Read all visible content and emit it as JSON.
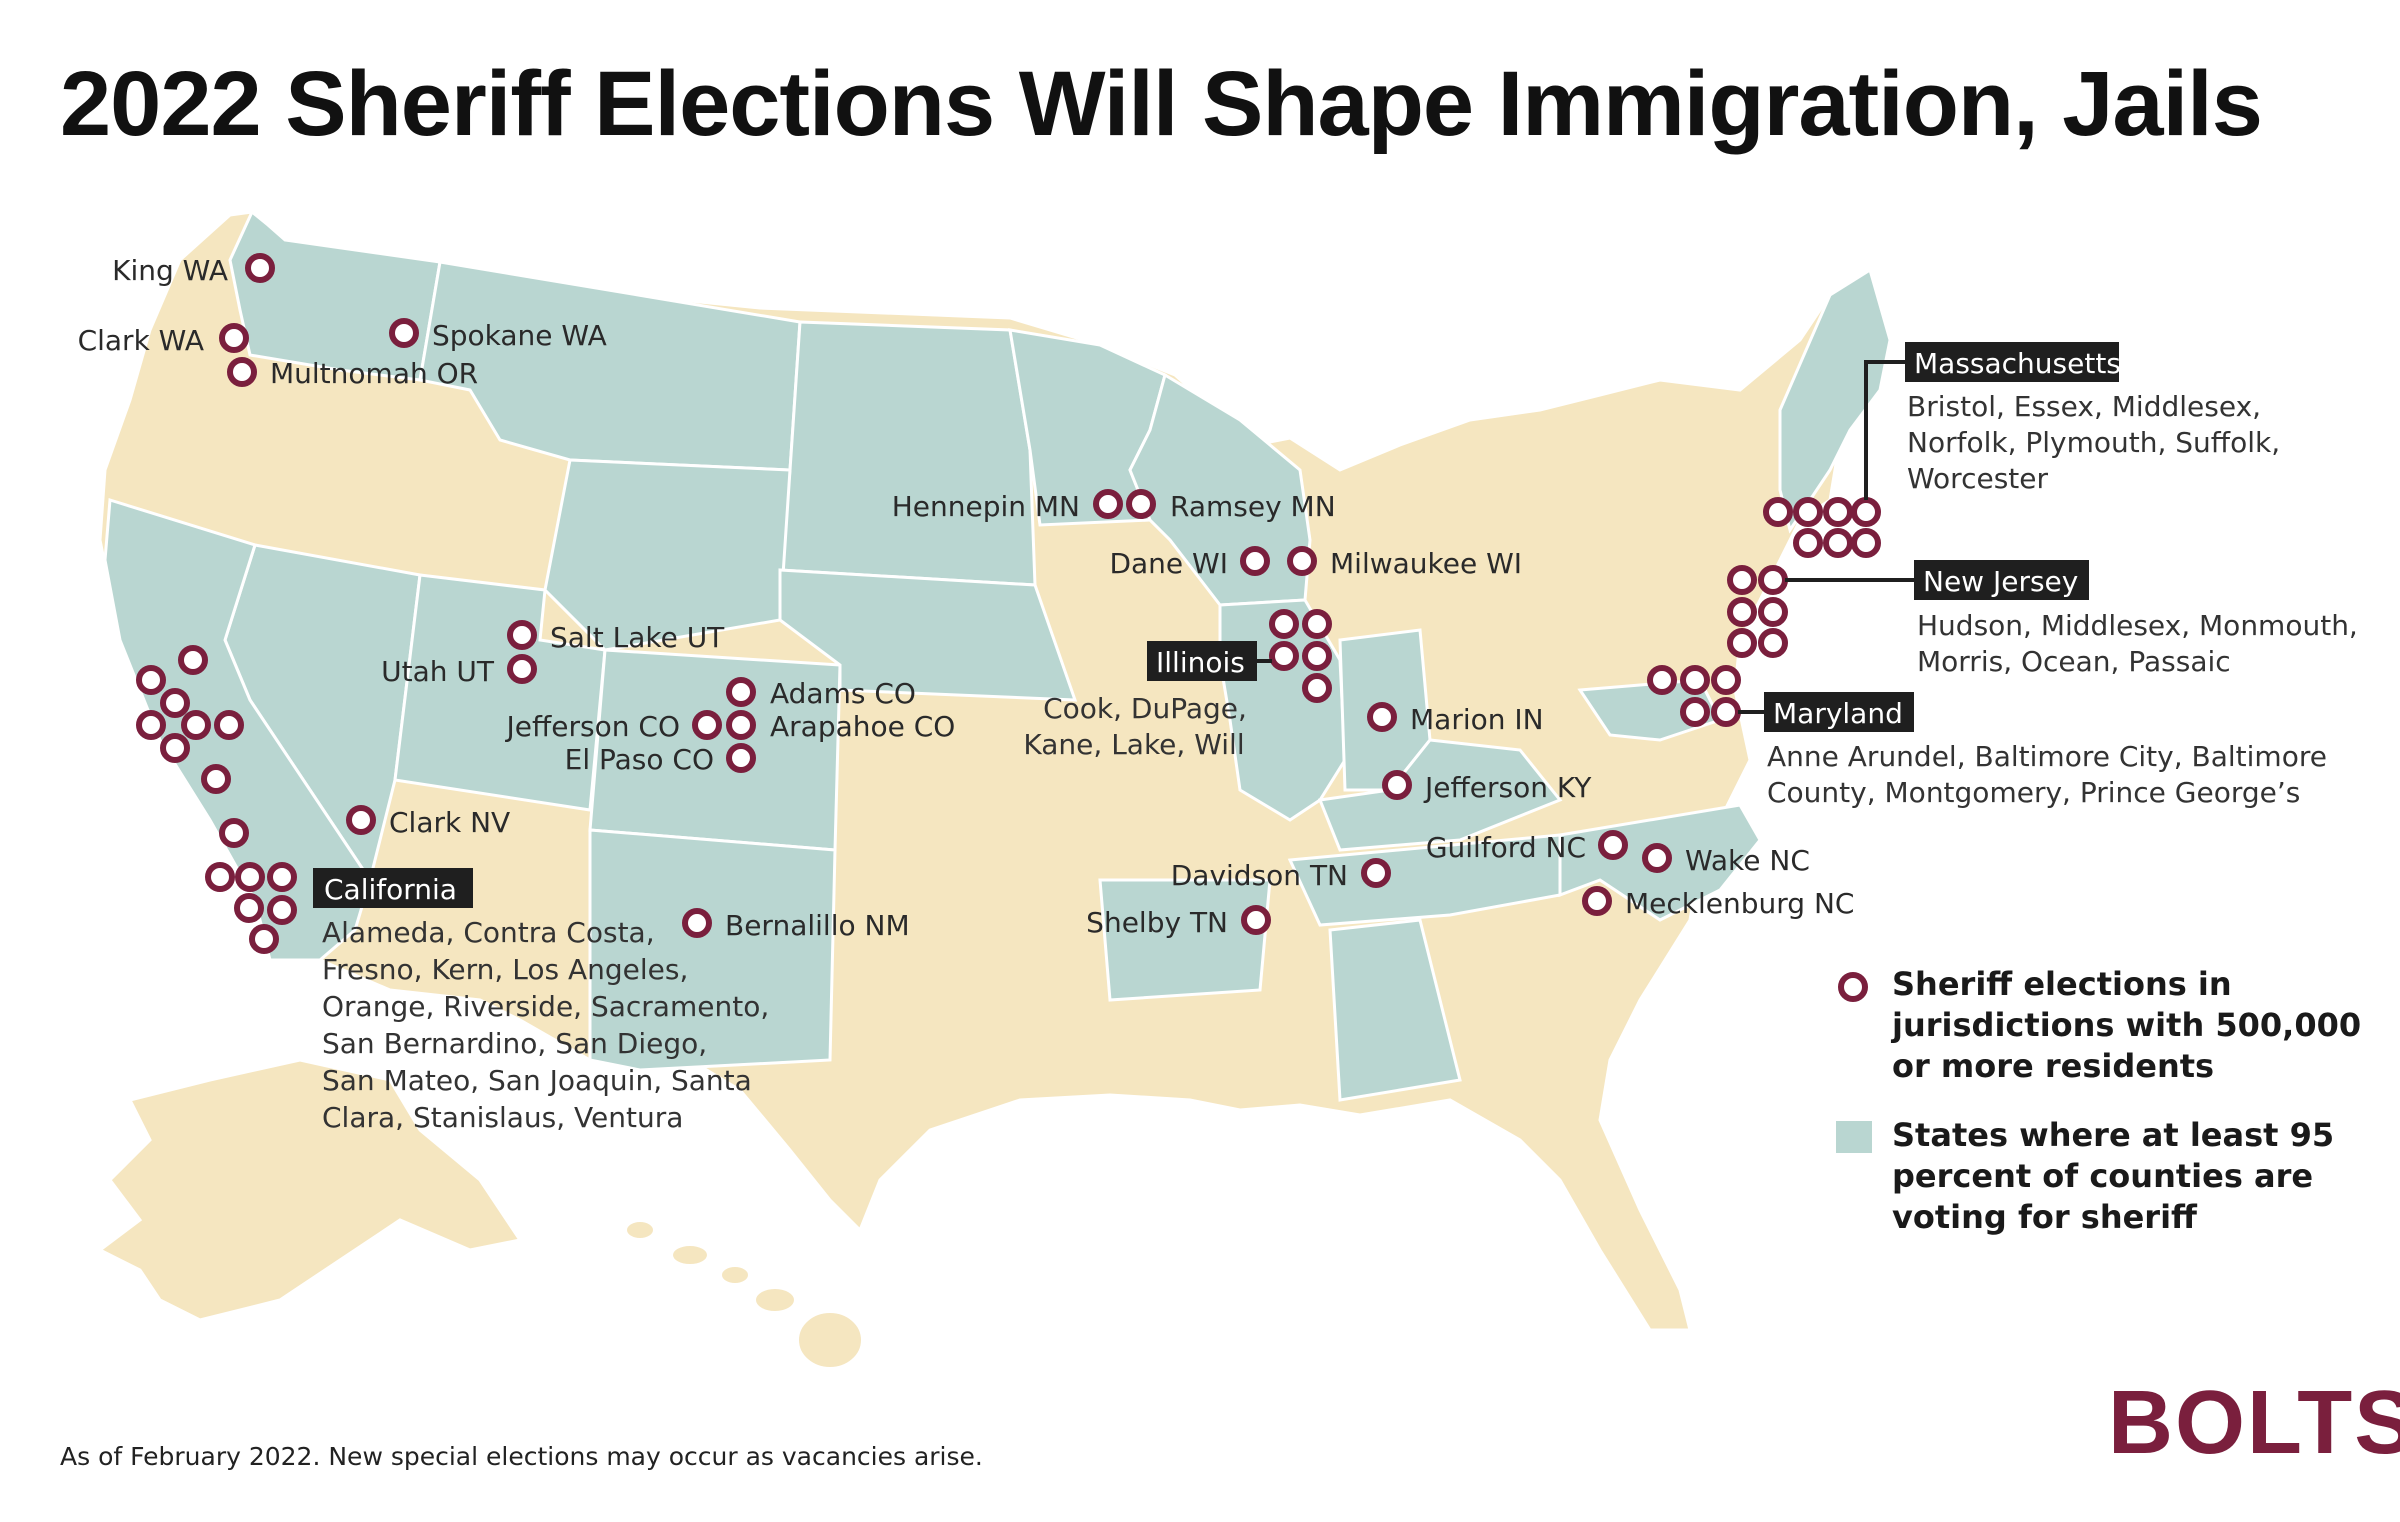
{
  "title": "2022 Sheriff Elections Will Shape Immigration, Jails",
  "footnote": "As of February 2022. New special elections may occur as vacancies arise.",
  "logo": "BOLTS",
  "colors": {
    "marker": "#7a1f3d",
    "high_turnout_state": "#b9d6d1",
    "other_state": "#f5e6c0",
    "state_border": "#ffffff",
    "tag_bg": "#1f1f1f"
  },
  "legend": {
    "marker_text": [
      "Sheriff elections in",
      "jurisdictions with 500,000",
      "or more residents"
    ],
    "state_text": [
      "States where at least 95",
      "percent of counties are",
      "voting for sheriff"
    ]
  },
  "labels": {
    "king": "King WA",
    "clark_wa": "Clark WA",
    "multnomah": "Multnomah OR",
    "spokane": "Spokane WA",
    "hennepin": "Hennepin MN",
    "ramsey": "Ramsey MN",
    "dane": "Dane WI",
    "milwaukee": "Milwaukee WI",
    "salt_lake": "Salt Lake UT",
    "utah": "Utah UT",
    "adams": "Adams CO",
    "arapahoe": "Arapahoe CO",
    "jefferson_co": "Jefferson CO",
    "el_paso": "El Paso CO",
    "marion": "Marion IN",
    "jefferson_ky": "Jefferson KY",
    "guilford": "Guilford NC",
    "wake": "Wake NC",
    "davidson": "Davidson TN",
    "shelby": "Shelby TN",
    "mecklenburg": "Mecklenburg NC",
    "clark_nv": "Clark NV",
    "bernalillo": "Bernalillo NM"
  },
  "groups": {
    "california": {
      "name": "California",
      "lines": [
        "Alameda, Contra Costa,",
        "Fresno, Kern, Los Angeles,",
        "Orange, Riverside, Sacramento,",
        "San Bernardino, San Diego,",
        "San Mateo, San Joaquin, Santa",
        "Clara, Stanislaus, Ventura"
      ]
    },
    "illinois": {
      "name": "Illinois",
      "lines": [
        "Cook, DuPage,",
        "Kane, Lake, Will"
      ]
    },
    "massachusetts": {
      "name": "Massachusetts",
      "lines": [
        "Bristol, Essex, Middlesex,",
        "Norfolk, Plymouth, Suffolk,",
        "Worcester"
      ]
    },
    "new_jersey": {
      "name": "New Jersey",
      "lines": [
        "Hudson, Middlesex, Monmouth,",
        "Morris, Ocean, Passaic"
      ]
    },
    "maryland": {
      "name": "Maryland",
      "lines": [
        "Anne Arundel, Baltimore City, Baltimore",
        "County, Montgomery, Prince George’s"
      ]
    }
  }
}
